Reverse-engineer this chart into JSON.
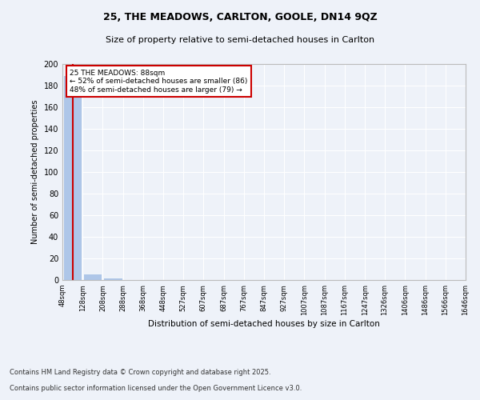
{
  "title1": "25, THE MEADOWS, CARLTON, GOOLE, DN14 9QZ",
  "title2": "Size of property relative to semi-detached houses in Carlton",
  "xlabel": "Distribution of semi-detached houses by size in Carlton",
  "ylabel": "Number of semi-detached properties",
  "footer1": "Contains HM Land Registry data © Crown copyright and database right 2025.",
  "footer2": "Contains public sector information licensed under the Open Government Licence v3.0.",
  "property_size": 88,
  "property_label": "25 THE MEADOWS: 88sqm",
  "pct_smaller": 52,
  "count_smaller": 86,
  "pct_larger": 48,
  "count_larger": 79,
  "bar_color": "#aec6e8",
  "marker_line_color": "#cc0000",
  "annotation_box_color": "#cc0000",
  "bg_color": "#eef2f9",
  "plot_bg_color": "#eef2f9",
  "grid_color": "#ffffff",
  "bins": [
    48,
    128,
    208,
    288,
    368,
    448,
    527,
    607,
    687,
    767,
    847,
    927,
    1007,
    1087,
    1167,
    1247,
    1326,
    1406,
    1486,
    1566,
    1646
  ],
  "counts": [
    190,
    6,
    2,
    1,
    0,
    0,
    0,
    0,
    0,
    0,
    0,
    0,
    0,
    0,
    0,
    0,
    0,
    0,
    0,
    1
  ],
  "ylim": [
    0,
    200
  ],
  "yticks": [
    0,
    20,
    40,
    60,
    80,
    100,
    120,
    140,
    160,
    180,
    200
  ]
}
